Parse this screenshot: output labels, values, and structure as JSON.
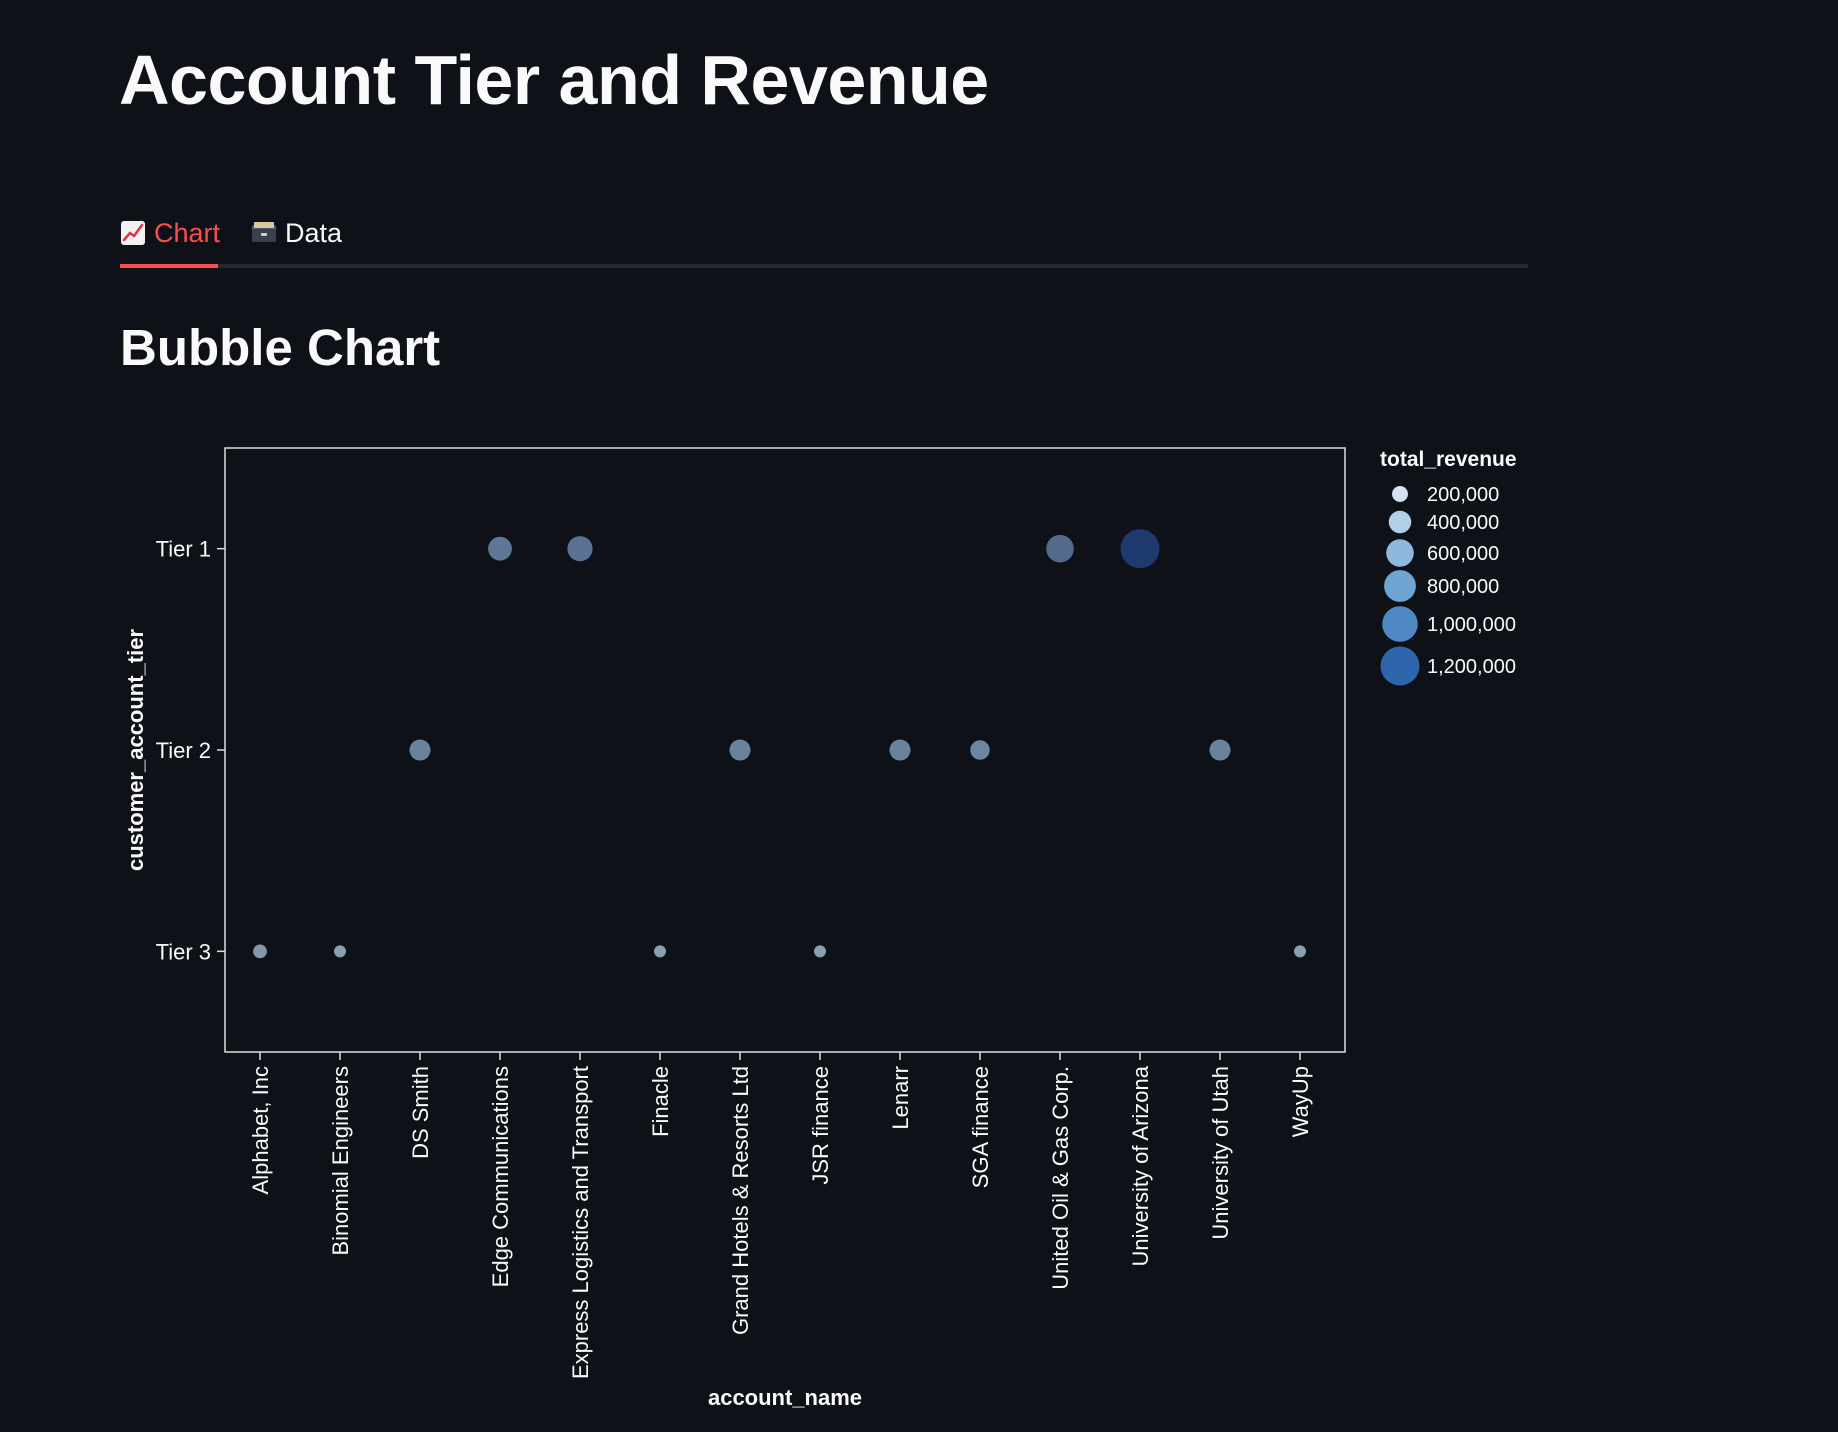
{
  "page": {
    "title": "Account Tier and Revenue",
    "subtitle": "Bubble Chart"
  },
  "tabs": [
    {
      "label": "Chart",
      "icon": "chart-increasing-icon",
      "active": true
    },
    {
      "label": "Data",
      "icon": "card-file-box-icon",
      "active": false
    }
  ],
  "colors": {
    "background": "#0e1117",
    "accent": "#ff4b4b",
    "tab_track": "#262730",
    "text": "#fafafa",
    "plot_border": "#dddddd"
  },
  "chart_data": {
    "type": "scatter",
    "encoding": "bubble",
    "xlabel": "account_name",
    "ylabel": "customer_account_tier",
    "x_categories": [
      "Alphabet, Inc",
      "Binomial Engineers",
      "DS Smith",
      "Edge Communications",
      "Express Logistics and Transport",
      "Finacle",
      "Grand Hotels & Resorts Ltd",
      "JSR finance",
      "Lenarr",
      "SGA finance",
      "United Oil & Gas Corp.",
      "University of Arizona",
      "University of Utah",
      "WayUp"
    ],
    "y_categories": [
      "Tier 1",
      "Tier 2",
      "Tier 3"
    ],
    "points": [
      {
        "account_name": "Alphabet, Inc",
        "customer_account_tier": "Tier 3",
        "total_revenue": 150000
      },
      {
        "account_name": "Binomial Engineers",
        "customer_account_tier": "Tier 3",
        "total_revenue": 100000
      },
      {
        "account_name": "DS Smith",
        "customer_account_tier": "Tier 2",
        "total_revenue": 350000
      },
      {
        "account_name": "Edge Communications",
        "customer_account_tier": "Tier 1",
        "total_revenue": 450000
      },
      {
        "account_name": "Express Logistics and Transport",
        "customer_account_tier": "Tier 1",
        "total_revenue": 500000
      },
      {
        "account_name": "Finacle",
        "customer_account_tier": "Tier 3",
        "total_revenue": 100000
      },
      {
        "account_name": "Grand Hotels & Resorts Ltd",
        "customer_account_tier": "Tier 2",
        "total_revenue": 350000
      },
      {
        "account_name": "JSR finance",
        "customer_account_tier": "Tier 3",
        "total_revenue": 100000
      },
      {
        "account_name": "Lenarr",
        "customer_account_tier": "Tier 2",
        "total_revenue": 350000
      },
      {
        "account_name": "SGA finance",
        "customer_account_tier": "Tier 2",
        "total_revenue": 300000
      },
      {
        "account_name": "United Oil & Gas Corp.",
        "customer_account_tier": "Tier 1",
        "total_revenue": 600000
      },
      {
        "account_name": "University of Arizona",
        "customer_account_tier": "Tier 1",
        "total_revenue": 1200000
      },
      {
        "account_name": "University of Utah",
        "customer_account_tier": "Tier 2",
        "total_revenue": 350000
      },
      {
        "account_name": "WayUp",
        "customer_account_tier": "Tier 3",
        "total_revenue": 100000
      }
    ],
    "legend": {
      "title": "total_revenue",
      "placement": "right",
      "entries": [
        {
          "label": "200,000",
          "value": 200000,
          "color": "#d6e4f2"
        },
        {
          "label": "400,000",
          "value": 400000,
          "color": "#b3cfe8"
        },
        {
          "label": "600,000",
          "value": 600000,
          "color": "#8fb8dd"
        },
        {
          "label": "800,000",
          "value": 800000,
          "color": "#6ea3d2"
        },
        {
          "label": "1,000,000",
          "value": 1000000,
          "color": "#4e89c6"
        },
        {
          "label": "1,200,000",
          "value": 1200000,
          "color": "#2e66ab"
        }
      ]
    },
    "grid": false
  }
}
